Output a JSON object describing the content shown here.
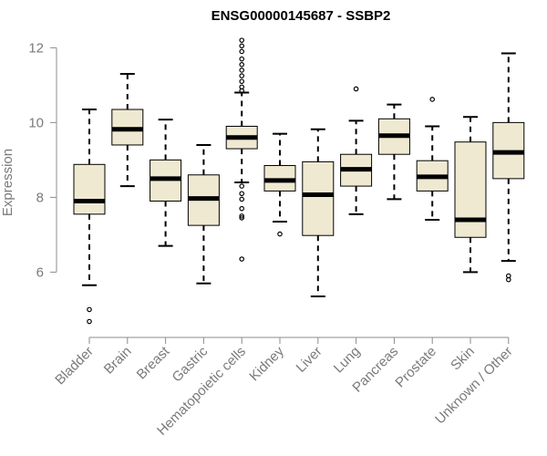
{
  "chart_data": {
    "type": "boxplot",
    "title": "ENSG00000145687 - SSBP2",
    "xlabel": "",
    "ylabel": "Expression",
    "ylim": [
      4.4,
      12.35
    ],
    "yticks": [
      6,
      8,
      10,
      12
    ],
    "grid": false,
    "legend": "none",
    "box_fill": "#efe9d2",
    "categories": [
      "Bladder",
      "Brain",
      "Breast",
      "Gastric",
      "Hematopoietic cells",
      "Kidney",
      "Liver",
      "Lung",
      "Pancreas",
      "Prostate",
      "Skin",
      "Unknown / Other"
    ],
    "boxes": [
      {
        "category": "Bladder",
        "whisker_low": 5.65,
        "q1": 7.55,
        "median": 7.9,
        "q3": 8.88,
        "whisker_high": 10.35,
        "outliers": [
          5.0,
          4.68
        ]
      },
      {
        "category": "Brain",
        "whisker_low": 8.3,
        "q1": 9.4,
        "median": 9.82,
        "q3": 10.35,
        "whisker_high": 11.3,
        "outliers": []
      },
      {
        "category": "Breast",
        "whisker_low": 6.7,
        "q1": 7.9,
        "median": 8.5,
        "q3": 9.0,
        "whisker_high": 10.08,
        "outliers": []
      },
      {
        "category": "Gastric",
        "whisker_low": 5.7,
        "q1": 7.25,
        "median": 7.97,
        "q3": 8.6,
        "whisker_high": 9.4,
        "outliers": []
      },
      {
        "category": "Hematopoietic cells",
        "whisker_low": 8.4,
        "q1": 9.3,
        "median": 9.6,
        "q3": 9.9,
        "whisker_high": 10.8,
        "outliers": [
          12.2,
          12.05,
          11.9,
          11.7,
          11.55,
          11.4,
          11.25,
          11.1,
          10.95,
          10.85,
          8.3,
          8.1,
          7.95,
          7.7,
          7.5,
          7.45,
          6.35
        ]
      },
      {
        "category": "Kidney",
        "whisker_low": 7.35,
        "q1": 8.17,
        "median": 8.45,
        "q3": 8.85,
        "whisker_high": 9.7,
        "outliers": [
          7.02
        ]
      },
      {
        "category": "Liver",
        "whisker_low": 5.35,
        "q1": 6.98,
        "median": 8.07,
        "q3": 8.95,
        "whisker_high": 9.82,
        "outliers": []
      },
      {
        "category": "Lung",
        "whisker_low": 7.55,
        "q1": 8.3,
        "median": 8.75,
        "q3": 9.15,
        "whisker_high": 10.05,
        "outliers": [
          10.9
        ]
      },
      {
        "category": "Pancreas",
        "whisker_low": 7.95,
        "q1": 9.15,
        "median": 9.65,
        "q3": 10.1,
        "whisker_high": 10.48,
        "outliers": []
      },
      {
        "category": "Prostate",
        "whisker_low": 7.4,
        "q1": 8.17,
        "median": 8.55,
        "q3": 8.98,
        "whisker_high": 9.9,
        "outliers": [
          10.62
        ]
      },
      {
        "category": "Skin",
        "whisker_low": 6.0,
        "q1": 6.93,
        "median": 7.4,
        "q3": 9.48,
        "whisker_high": 10.15,
        "outliers": []
      },
      {
        "category": "Unknown / Other",
        "whisker_low": 6.3,
        "q1": 8.5,
        "median": 9.2,
        "q3": 10.0,
        "whisker_high": 11.85,
        "outliers": [
          5.9,
          5.8
        ]
      }
    ]
  }
}
